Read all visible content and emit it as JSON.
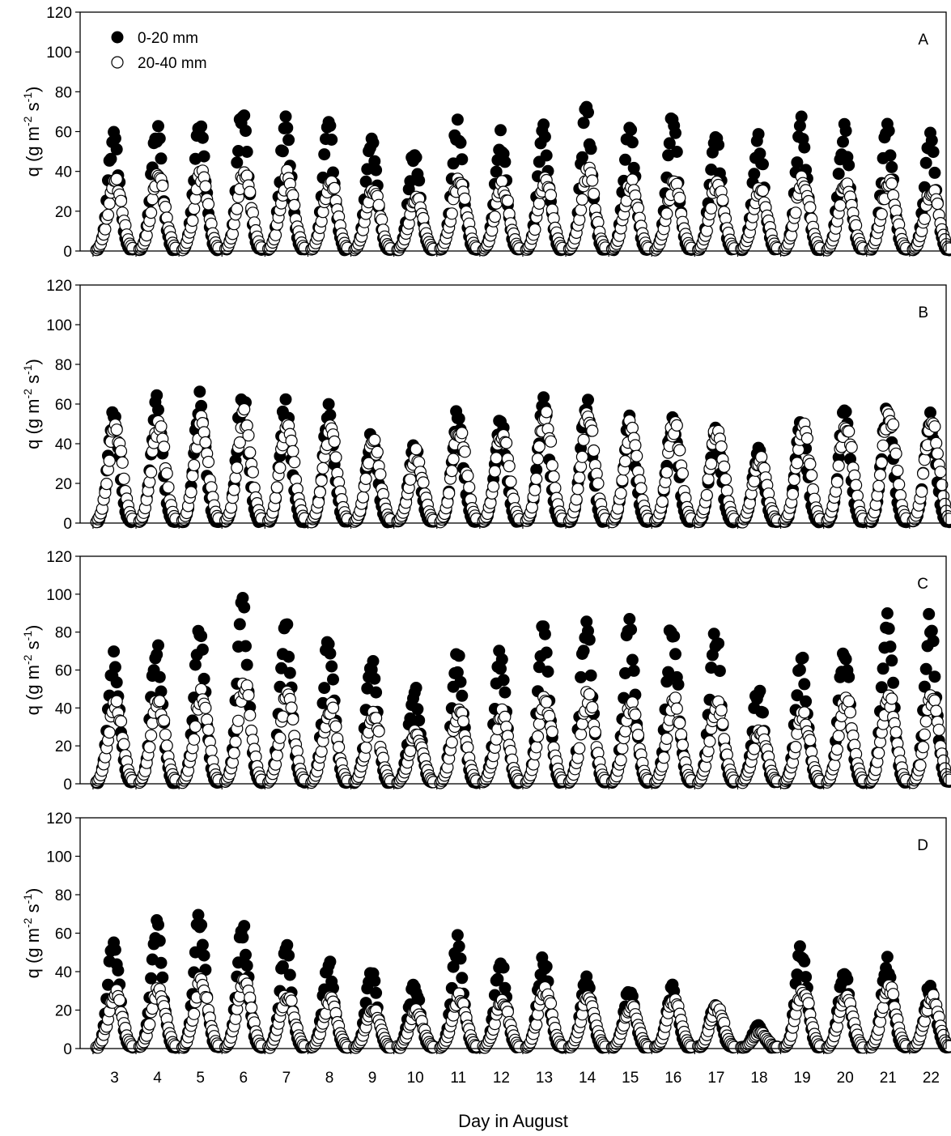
{
  "chart_data": [
    {
      "type": "scatter",
      "panel": "A",
      "ylabel": "q (g m-2 s-1)",
      "xlabel": "",
      "ylim": [
        0,
        120
      ],
      "yticks": [
        0,
        20,
        40,
        60,
        80,
        100,
        120
      ],
      "xlim": [
        2.2,
        22.35
      ],
      "xticks": [
        3,
        4,
        5,
        6,
        7,
        8,
        9,
        10,
        11,
        12,
        13,
        14,
        15,
        16,
        17,
        18,
        19,
        20,
        21,
        22
      ],
      "legend_position": "top-left",
      "series": [
        {
          "name": "0-20 mm",
          "marker": "filled-circle",
          "daily_peak": [
            60,
            63,
            67,
            72,
            65,
            63,
            58,
            52,
            64,
            60,
            64,
            71,
            64,
            66,
            62,
            58,
            65,
            63,
            63,
            61
          ]
        },
        {
          "name": "20-40 mm",
          "marker": "open-circle",
          "daily_peak": [
            36,
            38,
            40,
            42,
            39,
            37,
            33,
            28,
            38,
            34,
            38,
            41,
            36,
            36,
            35,
            33,
            38,
            36,
            37,
            33
          ]
        }
      ]
    },
    {
      "type": "scatter",
      "panel": "B",
      "ylabel": "q (g m-2 s-1)",
      "xlabel": "",
      "ylim": [
        0,
        120
      ],
      "yticks": [
        0,
        20,
        40,
        60,
        80,
        100,
        120
      ],
      "xlim": [
        2.2,
        22.35
      ],
      "xticks": [
        3,
        4,
        5,
        6,
        7,
        8,
        9,
        10,
        11,
        12,
        13,
        14,
        15,
        16,
        17,
        18,
        19,
        20,
        21,
        22
      ],
      "series": [
        {
          "name": "0-20 mm",
          "marker": "filled-circle",
          "daily_peak": [
            58,
            62,
            65,
            69,
            62,
            58,
            46,
            41,
            56,
            54,
            61,
            63,
            53,
            54,
            48,
            37,
            53,
            57,
            61,
            55
          ]
        },
        {
          "name": "20-40 mm",
          "marker": "open-circle",
          "daily_peak": [
            50,
            52,
            53,
            56,
            53,
            49,
            42,
            36,
            50,
            48,
            56,
            56,
            51,
            52,
            49,
            33,
            50,
            54,
            59,
            55
          ]
        }
      ]
    },
    {
      "type": "scatter",
      "panel": "C",
      "ylabel": "q (g m-2 s-1)",
      "xlabel": "",
      "ylim": [
        0,
        120
      ],
      "yticks": [
        0,
        20,
        40,
        60,
        80,
        100,
        120
      ],
      "xlim": [
        2.2,
        22.35
      ],
      "xticks": [
        3,
        4,
        5,
        6,
        7,
        8,
        9,
        10,
        11,
        12,
        13,
        14,
        15,
        16,
        17,
        18,
        19,
        20,
        21,
        22
      ],
      "series": [
        {
          "name": "0-20 mm",
          "marker": "filled-circle",
          "daily_peak": [
            68,
            74,
            83,
            97,
            87,
            77,
            65,
            52,
            68,
            70,
            82,
            91,
            87,
            89,
            83,
            51,
            68,
            77,
            93,
            89
          ]
        },
        {
          "name": "20-40 mm",
          "marker": "open-circle",
          "daily_peak": [
            45,
            46,
            48,
            55,
            48,
            42,
            38,
            28,
            40,
            38,
            46,
            48,
            44,
            45,
            45,
            30,
            38,
            46,
            48,
            47
          ]
        }
      ]
    },
    {
      "type": "scatter",
      "panel": "D",
      "ylabel": "q (g m-2 s-1)",
      "xlabel": "Day in August",
      "ylim": [
        0,
        120
      ],
      "yticks": [
        0,
        20,
        40,
        60,
        80,
        100,
        120
      ],
      "xlim": [
        2.2,
        22.35
      ],
      "xticks": [
        3,
        4,
        5,
        6,
        7,
        8,
        9,
        10,
        11,
        12,
        13,
        14,
        15,
        16,
        17,
        18,
        19,
        20,
        21,
        22
      ],
      "series": [
        {
          "name": "0-20 mm",
          "marker": "filled-circle",
          "daily_peak": [
            58,
            66,
            70,
            65,
            54,
            46,
            41,
            35,
            57,
            47,
            49,
            38,
            33,
            32,
            25,
            12,
            55,
            44,
            46,
            34
          ]
        },
        {
          "name": "20-40 mm",
          "marker": "open-circle",
          "daily_peak": [
            30,
            33,
            37,
            38,
            30,
            26,
            22,
            20,
            28,
            26,
            32,
            28,
            23,
            26,
            22,
            9,
            32,
            28,
            34,
            28
          ]
        }
      ]
    }
  ]
}
